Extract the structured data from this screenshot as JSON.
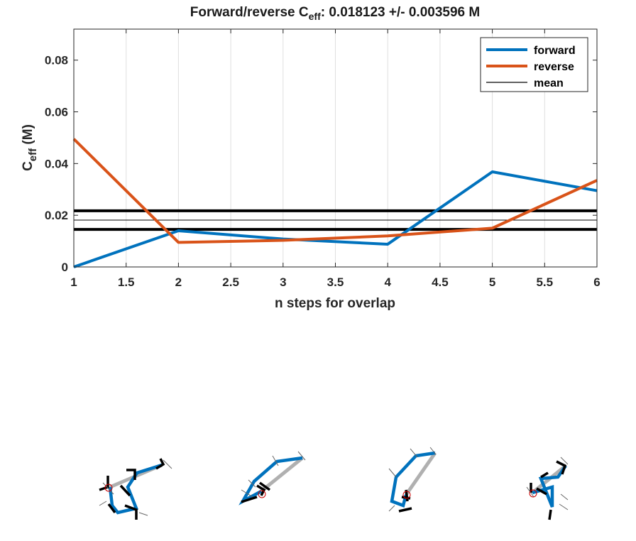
{
  "chart_data": {
    "type": "line",
    "title_main": "Forward/reverse C",
    "title_sub": "eff",
    "title_rest": ": 0.018123 +/- 0.003596 M",
    "xlabel": "n steps for overlap",
    "ylabel_main": "C",
    "ylabel_sub": "eff",
    "ylabel_rest": " (M)",
    "xlim": [
      1,
      6
    ],
    "ylim": [
      0,
      0.092
    ],
    "xticks": [
      1,
      1.5,
      2,
      2.5,
      3,
      3.5,
      4,
      4.5,
      5,
      5.5,
      6
    ],
    "xtick_labels": [
      "1",
      "1.5",
      "2",
      "2.5",
      "3",
      "3.5",
      "4",
      "4.5",
      "5",
      "5.5",
      "6"
    ],
    "yticks": [
      0,
      0.02,
      0.04,
      0.06,
      0.08
    ],
    "ytick_labels": [
      "0",
      "0.02",
      "0.04",
      "0.06",
      "0.08"
    ],
    "grid": "x",
    "legend_position": "top-right",
    "series": [
      {
        "name": "forward",
        "color": "#0072BD",
        "x": [
          1,
          2,
          3,
          4,
          5,
          6
        ],
        "y": [
          0.0,
          0.014,
          0.0108,
          0.0088,
          0.0368,
          0.0295
        ]
      },
      {
        "name": "reverse",
        "color": "#D95319",
        "x": [
          1,
          2,
          3,
          4,
          5,
          6
        ],
        "y": [
          0.0495,
          0.0095,
          0.0103,
          0.012,
          0.015,
          0.0335
        ]
      },
      {
        "name": "mean",
        "color": "#000000",
        "y_mean": 0.018123,
        "y_band": [
          0.014527,
          0.021719
        ]
      }
    ]
  },
  "structures": {
    "count": 4,
    "colors": {
      "backbone": "#0072BD",
      "overlap": "#B0B0B0",
      "frames": "#000000",
      "thin_axes": "#555555",
      "marker": "#CC0000"
    }
  }
}
